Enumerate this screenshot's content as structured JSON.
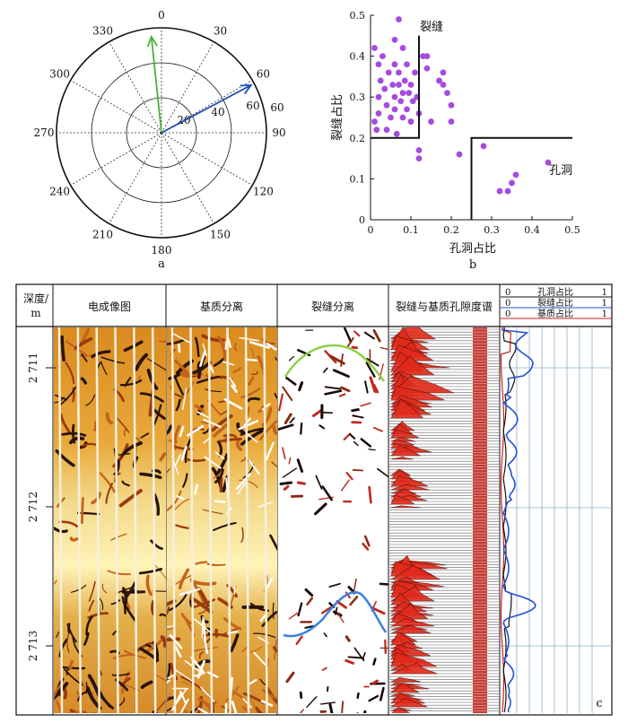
{
  "colors": {
    "ink": "#111111",
    "green_arrow": "#4caf3a",
    "blue_arrow": "#1b4fb8",
    "purple_point": "#a44be0",
    "spectrum_red": "#e02a1a",
    "curve_black": "#111111",
    "curve_blue": "#2250d8",
    "curve_red": "#d01e1e"
  },
  "panel_a": {
    "label": "a",
    "angle_labels": [
      "0",
      "30",
      "60",
      "90",
      "120",
      "150",
      "180",
      "210",
      "240",
      "270",
      "300",
      "330"
    ],
    "radial_labels": [
      "20",
      "40",
      "60"
    ],
    "arrows": [
      {
        "name": "green",
        "azimuth_deg": 354,
        "radius": 60
      },
      {
        "name": "blue",
        "azimuth_deg": 62,
        "radius": 63
      }
    ]
  },
  "panel_b": {
    "label": "b",
    "chart_data": {
      "type": "scatter",
      "xlabel": "孔洞占比",
      "ylabel": "裂缝占比",
      "xlim": [
        0,
        0.5
      ],
      "ylim": [
        0,
        0.5
      ],
      "x_ticks": [
        "0",
        "0.1",
        "0.2",
        "0.3",
        "0.4",
        "0.5"
      ],
      "y_ticks": [
        "0",
        "0.1",
        "0.2",
        "0.3",
        "0.4",
        "0.5"
      ],
      "annotations": [
        "裂缝",
        "孔洞"
      ],
      "region_lines": [
        {
          "name": "fracture-region",
          "points": [
            [
              0.0,
              0.2
            ],
            [
              0.12,
              0.2
            ],
            [
              0.12,
              0.45
            ]
          ]
        },
        {
          "name": "vug-region",
          "points": [
            [
              0.25,
              0.0
            ],
            [
              0.25,
              0.2
            ],
            [
              0.5,
              0.2
            ]
          ]
        }
      ],
      "points": [
        [
          0.01,
          0.42
        ],
        [
          0.01,
          0.24
        ],
        [
          0.015,
          0.22
        ],
        [
          0.02,
          0.38
        ],
        [
          0.02,
          0.3
        ],
        [
          0.02,
          0.26
        ],
        [
          0.025,
          0.34
        ],
        [
          0.03,
          0.4
        ],
        [
          0.035,
          0.32
        ],
        [
          0.04,
          0.28
        ],
        [
          0.04,
          0.22
        ],
        [
          0.045,
          0.36
        ],
        [
          0.05,
          0.25
        ],
        [
          0.055,
          0.33
        ],
        [
          0.06,
          0.44
        ],
        [
          0.06,
          0.38
        ],
        [
          0.06,
          0.3
        ],
        [
          0.06,
          0.27
        ],
        [
          0.065,
          0.21
        ],
        [
          0.07,
          0.49
        ],
        [
          0.07,
          0.36
        ],
        [
          0.07,
          0.33
        ],
        [
          0.075,
          0.29
        ],
        [
          0.08,
          0.42
        ],
        [
          0.08,
          0.31
        ],
        [
          0.08,
          0.25
        ],
        [
          0.085,
          0.34
        ],
        [
          0.09,
          0.38
        ],
        [
          0.09,
          0.27
        ],
        [
          0.095,
          0.31
        ],
        [
          0.1,
          0.33
        ],
        [
          0.1,
          0.24
        ],
        [
          0.105,
          0.29
        ],
        [
          0.11,
          0.36
        ],
        [
          0.115,
          0.3
        ],
        [
          0.12,
          0.26
        ],
        [
          0.12,
          0.17
        ],
        [
          0.12,
          0.15
        ],
        [
          0.13,
          0.4
        ],
        [
          0.14,
          0.37
        ],
        [
          0.14,
          0.4
        ],
        [
          0.15,
          0.24
        ],
        [
          0.17,
          0.34
        ],
        [
          0.18,
          0.33
        ],
        [
          0.18,
          0.36
        ],
        [
          0.19,
          0.31
        ],
        [
          0.2,
          0.28
        ],
        [
          0.2,
          0.24
        ],
        [
          0.22,
          0.16
        ],
        [
          0.28,
          0.18
        ],
        [
          0.32,
          0.07
        ],
        [
          0.34,
          0.07
        ],
        [
          0.35,
          0.09
        ],
        [
          0.36,
          0.11
        ],
        [
          0.44,
          0.14
        ]
      ]
    }
  },
  "panel_c": {
    "label": "c",
    "headers": {
      "depth": "深度/\nm",
      "depth_line1": "深度/",
      "depth_line2": "m",
      "image": "电成像图",
      "matrix": "基质分离",
      "fracture": "裂缝分离",
      "spectrum": "裂缝与基质孔隙度谱"
    },
    "legend": [
      {
        "zero": "0",
        "label": "孔洞占比",
        "one": "1",
        "color": "#111111"
      },
      {
        "zero": "0",
        "label": "裂缝占比",
        "one": "1",
        "color": "#2250d8"
      },
      {
        "zero": "0",
        "label": "基质占比",
        "one": "1",
        "color": "#d01e1e"
      }
    ],
    "depth_labels": [
      "2 711",
      "2 712",
      "2 713"
    ],
    "depth_values": [
      2711,
      2712,
      2713
    ]
  }
}
